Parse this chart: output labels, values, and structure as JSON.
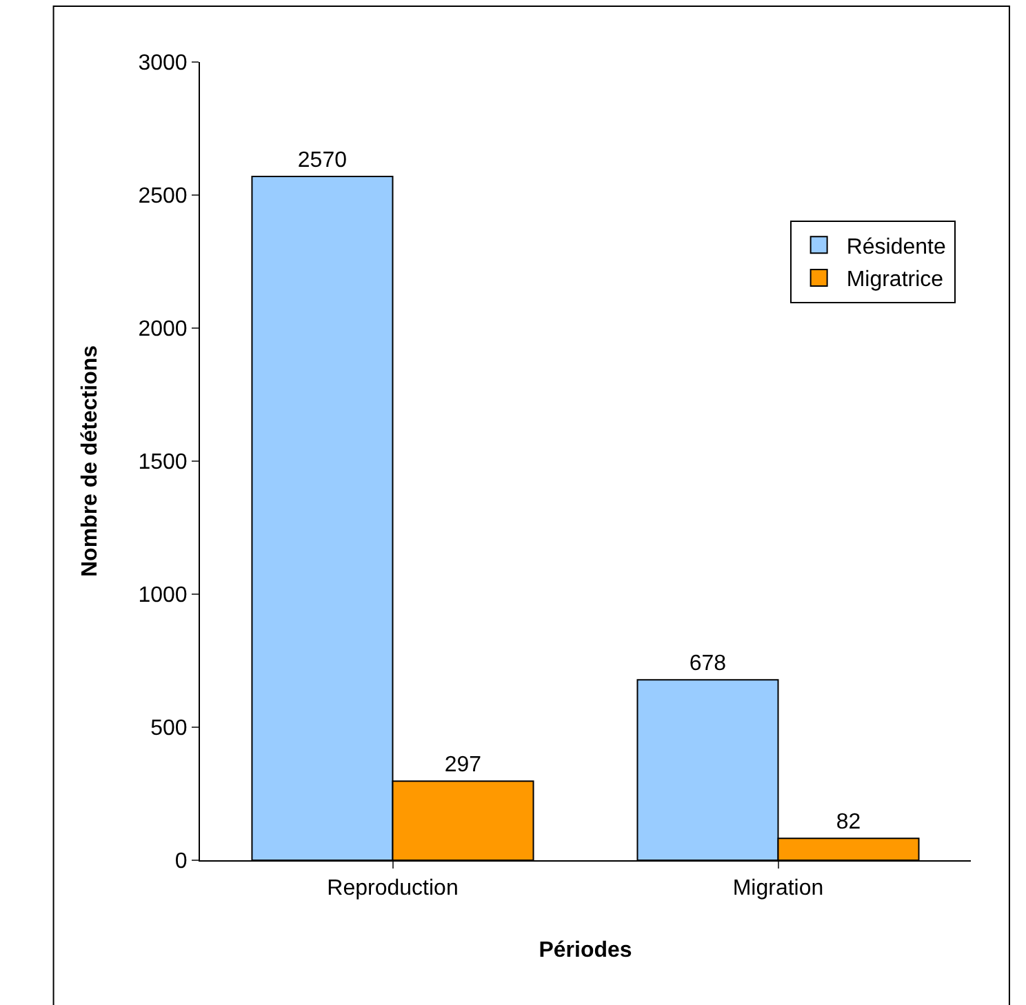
{
  "chart_data": {
    "type": "bar",
    "xlabel": "Périodes",
    "ylabel": "Nombre de détections",
    "categories": [
      "Reproduction",
      "Migration"
    ],
    "series": [
      {
        "name": "Résidente",
        "color": "#99ccff",
        "values": [
          2570,
          678
        ]
      },
      {
        "name": "Migratrice",
        "color": "#ff9900",
        "values": [
          297,
          82
        ]
      }
    ],
    "ylim": [
      0,
      3000
    ],
    "yticks": [
      0,
      500,
      1000,
      1500,
      2000,
      2500,
      3000
    ],
    "grid": false,
    "legend": "right",
    "data_labels": true
  }
}
